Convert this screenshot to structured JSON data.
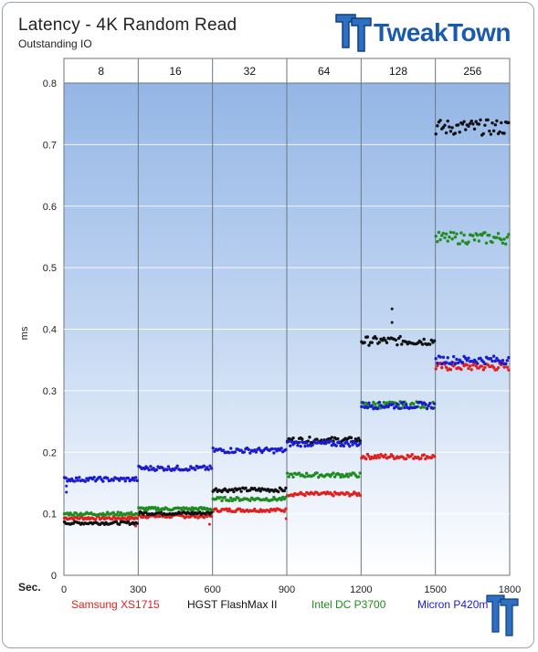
{
  "chart_data": {
    "type": "scatter",
    "title": "Latency - 4K Random Read",
    "subtitle": "Outstanding IO",
    "xlabel": "Sec.",
    "ylabel": "ms",
    "xlim": [
      0,
      1800
    ],
    "ylim": [
      0,
      0.8
    ],
    "x_ticks": [
      0,
      300,
      600,
      900,
      1200,
      1500,
      1800
    ],
    "y_ticks": [
      0,
      0.1,
      0.2,
      0.3,
      0.4,
      0.5,
      0.6,
      0.7,
      0.8
    ],
    "top_categories": [
      "8",
      "16",
      "32",
      "64",
      "128",
      "256"
    ],
    "grid": true,
    "legend_position": "bottom",
    "series": [
      {
        "name": "Samsung XS1715",
        "color": "#e0201e",
        "segments": [
          {
            "x": [
              0,
              300
            ],
            "y": 0.093
          },
          {
            "x": [
              300,
              600
            ],
            "y": 0.096
          },
          {
            "x": [
              600,
              900
            ],
            "y": 0.106
          },
          {
            "x": [
              900,
              1200
            ],
            "y": 0.132
          },
          {
            "x": [
              1200,
              1500
            ],
            "y": 0.193
          },
          {
            "x": [
              1500,
              1800
            ],
            "y": 0.339
          }
        ]
      },
      {
        "name": "HGST FlashMax II",
        "color": "#111111",
        "segments": [
          {
            "x": [
              0,
              300
            ],
            "y": 0.085
          },
          {
            "x": [
              300,
              600
            ],
            "y": 0.101
          },
          {
            "x": [
              600,
              900
            ],
            "y": 0.139
          },
          {
            "x": [
              900,
              1200
            ],
            "y": 0.22
          },
          {
            "x": [
              1200,
              1500
            ],
            "y": 0.381
          },
          {
            "x": [
              1500,
              1800
            ],
            "y": 0.728
          }
        ]
      },
      {
        "name": "Intel DC P3700",
        "color": "#1e8c1e",
        "segments": [
          {
            "x": [
              0,
              300
            ],
            "y": 0.1
          },
          {
            "x": [
              300,
              600
            ],
            "y": 0.108
          },
          {
            "x": [
              600,
              900
            ],
            "y": 0.124
          },
          {
            "x": [
              900,
              1200
            ],
            "y": 0.163
          },
          {
            "x": [
              1200,
              1500
            ],
            "y": 0.277
          },
          {
            "x": [
              1500,
              1800
            ],
            "y": 0.548
          }
        ]
      },
      {
        "name": "Micron P420m",
        "color": "#1a1ad0",
        "segments": [
          {
            "x": [
              0,
              300
            ],
            "y": 0.156
          },
          {
            "x": [
              300,
              600
            ],
            "y": 0.174
          },
          {
            "x": [
              600,
              900
            ],
            "y": 0.203
          },
          {
            "x": [
              900,
              1200
            ],
            "y": 0.214
          },
          {
            "x": [
              1200,
              1500
            ],
            "y": 0.276
          },
          {
            "x": [
              1500,
              1800
            ],
            "y": 0.35
          }
        ]
      }
    ],
    "outliers": [
      {
        "series": "HGST FlashMax II",
        "x": 1325,
        "y": 0.433
      },
      {
        "series": "HGST FlashMax II",
        "x": 1325,
        "y": 0.411
      },
      {
        "series": "Micron P420m",
        "x": 10,
        "y": 0.145
      },
      {
        "series": "Micron P420m",
        "x": 10,
        "y": 0.135
      },
      {
        "series": "Samsung XS1715",
        "x": 290,
        "y": 0.08
      },
      {
        "series": "Samsung XS1715",
        "x": 588,
        "y": 0.083
      },
      {
        "series": "Samsung XS1715",
        "x": 897,
        "y": 0.092
      }
    ]
  },
  "logo": {
    "brand": "TweakTown",
    "color": "#1a5aa8",
    "icon": "tweaktown-tt-logo-icon"
  },
  "badge": {
    "icon": "tweaktown-badge-icon"
  }
}
